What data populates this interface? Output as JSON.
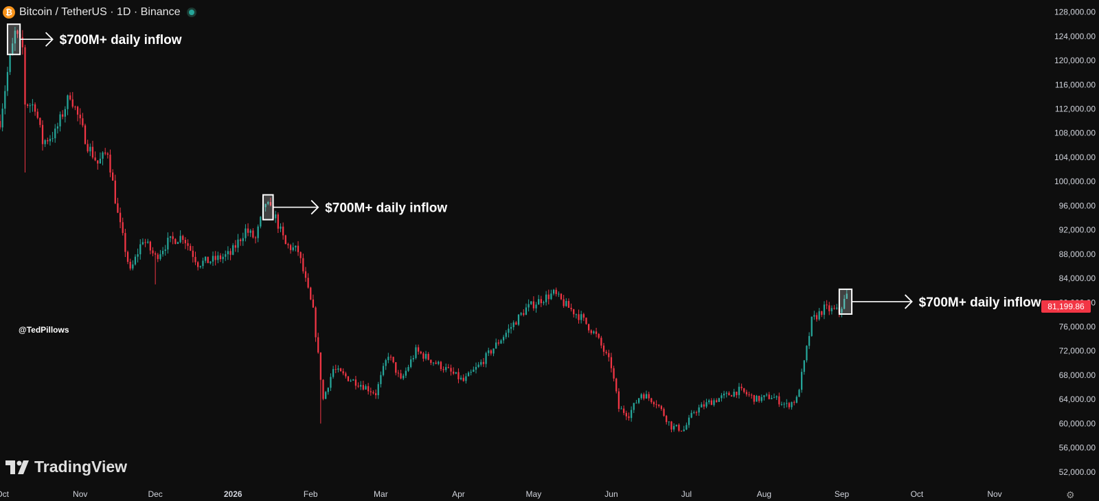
{
  "header": {
    "coin_icon": "bitcoin-icon",
    "coin_glyph": "₿",
    "title": "Bitcoin / TetherUS · 1D · Binance",
    "status_icon": "market-open-dot-icon"
  },
  "watermark": "@TedPillows",
  "brand": {
    "name": "TradingView",
    "icon": "tradingview-logo-icon"
  },
  "last_price": "81,199.86",
  "colors": {
    "background": "#0e0e0e",
    "up": "#26a69a",
    "down": "#f23645",
    "text": "#d1d4dc",
    "annotation": "#ffffff"
  },
  "chart_data": {
    "type": "candlestick",
    "title": "Bitcoin / TetherUS · 1D · Binance",
    "x_ticks": [
      {
        "label": "Oct",
        "date": "2025-10-01"
      },
      {
        "label": "Nov",
        "date": "2025-11-01"
      },
      {
        "label": "Dec",
        "date": "2025-12-01"
      },
      {
        "label": "2026",
        "date": "2026-01-01",
        "bold": true
      },
      {
        "label": "Feb",
        "date": "2026-02-01"
      },
      {
        "label": "Mar",
        "date": "2026-03-01"
      },
      {
        "label": "Apr",
        "date": "2026-04-01"
      },
      {
        "label": "May",
        "date": "2026-05-01"
      },
      {
        "label": "Jun",
        "date": "2026-06-01"
      },
      {
        "label": "Jul",
        "date": "2026-07-01"
      },
      {
        "label": "Aug",
        "date": "2026-08-01"
      },
      {
        "label": "Sep",
        "date": "2026-09-01"
      },
      {
        "label": "Oct",
        "date": "2026-10-01"
      },
      {
        "label": "Nov",
        "date": "2026-11-01"
      }
    ],
    "y_ticks": [
      "128,000.00",
      "124,000.00",
      "120,000.00",
      "116,000.00",
      "112,000.00",
      "108,000.00",
      "104,000.00",
      "100,000.00",
      "96,000.00",
      "92,000.00",
      "88,000.00",
      "84,000.00",
      "80,000.00",
      "76,000.00",
      "72,000.00",
      "68,000.00",
      "64,000.00",
      "60,000.00",
      "56,000.00",
      "52,000.00"
    ],
    "ylim": [
      50500,
      130000
    ],
    "xlim": [
      "2025-09-30",
      "2026-11-18"
    ],
    "grid": false,
    "price_path": [
      {
        "date": "2025-09-30",
        "price": 110000
      },
      {
        "date": "2025-10-03",
        "price": 118000
      },
      {
        "date": "2025-10-06",
        "price": 124500
      },
      {
        "date": "2025-10-09",
        "price": 122000
      },
      {
        "date": "2025-10-10",
        "price": 113000
      },
      {
        "date": "2025-10-14",
        "price": 112500
      },
      {
        "date": "2025-10-17",
        "price": 106500
      },
      {
        "date": "2025-10-22",
        "price": 108000
      },
      {
        "date": "2025-10-28",
        "price": 114500
      },
      {
        "date": "2025-11-04",
        "price": 106000
      },
      {
        "date": "2025-11-08",
        "price": 103000
      },
      {
        "date": "2025-11-12",
        "price": 105000
      },
      {
        "date": "2025-11-16",
        "price": 94500
      },
      {
        "date": "2025-11-21",
        "price": 85000
      },
      {
        "date": "2025-11-26",
        "price": 90500
      },
      {
        "date": "2025-12-01",
        "price": 87500
      },
      {
        "date": "2025-12-06",
        "price": 90000
      },
      {
        "date": "2025-12-12",
        "price": 91000
      },
      {
        "date": "2025-12-18",
        "price": 86500
      },
      {
        "date": "2025-12-24",
        "price": 87000
      },
      {
        "date": "2025-12-31",
        "price": 88000
      },
      {
        "date": "2026-01-06",
        "price": 92000
      },
      {
        "date": "2026-01-10",
        "price": 90500
      },
      {
        "date": "2026-01-14",
        "price": 96500
      },
      {
        "date": "2026-01-18",
        "price": 94000
      },
      {
        "date": "2026-01-22",
        "price": 89500
      },
      {
        "date": "2026-01-27",
        "price": 88500
      },
      {
        "date": "2026-02-02",
        "price": 78500
      },
      {
        "date": "2026-02-06",
        "price": 64000
      },
      {
        "date": "2026-02-10",
        "price": 69000
      },
      {
        "date": "2026-02-16",
        "price": 67500
      },
      {
        "date": "2026-02-21",
        "price": 66500
      },
      {
        "date": "2026-02-27",
        "price": 65000
      },
      {
        "date": "2026-03-04",
        "price": 71500
      },
      {
        "date": "2026-03-09",
        "price": 67000
      },
      {
        "date": "2026-03-15",
        "price": 72000
      },
      {
        "date": "2026-03-21",
        "price": 70500
      },
      {
        "date": "2026-03-27",
        "price": 69000
      },
      {
        "date": "2026-04-03",
        "price": 67000
      },
      {
        "date": "2026-04-09",
        "price": 69500
      },
      {
        "date": "2026-04-15",
        "price": 72500
      },
      {
        "date": "2026-04-21",
        "price": 75500
      },
      {
        "date": "2026-04-28",
        "price": 79000
      },
      {
        "date": "2026-05-04",
        "price": 80500
      },
      {
        "date": "2026-05-09",
        "price": 81500
      },
      {
        "date": "2026-05-14",
        "price": 79500
      },
      {
        "date": "2026-05-20",
        "price": 77500
      },
      {
        "date": "2026-05-26",
        "price": 74500
      },
      {
        "date": "2026-06-01",
        "price": 69500
      },
      {
        "date": "2026-06-04",
        "price": 62500
      },
      {
        "date": "2026-06-08",
        "price": 61500
      },
      {
        "date": "2026-06-13",
        "price": 65000
      },
      {
        "date": "2026-06-19",
        "price": 63500
      },
      {
        "date": "2026-06-25",
        "price": 59500
      },
      {
        "date": "2026-06-30",
        "price": 59000
      },
      {
        "date": "2026-07-04",
        "price": 62000
      },
      {
        "date": "2026-07-10",
        "price": 63500
      },
      {
        "date": "2026-07-16",
        "price": 64500
      },
      {
        "date": "2026-07-22",
        "price": 65500
      },
      {
        "date": "2026-07-29",
        "price": 64000
      },
      {
        "date": "2026-08-04",
        "price": 64500
      },
      {
        "date": "2026-08-10",
        "price": 63000
      },
      {
        "date": "2026-08-14",
        "price": 64000
      },
      {
        "date": "2026-08-17",
        "price": 70000
      },
      {
        "date": "2026-08-20",
        "price": 77000
      },
      {
        "date": "2026-08-25",
        "price": 79000
      },
      {
        "date": "2026-08-31",
        "price": 78500
      },
      {
        "date": "2026-09-03",
        "price": 81200
      }
    ],
    "annotations": [
      {
        "text": "$700M+ daily inflow",
        "box_start": "2025-10-03",
        "box_end": "2025-10-08",
        "box_low": 121000,
        "box_high": 126000,
        "arrow_end": "2025-10-21"
      },
      {
        "text": "$700M+ daily inflow",
        "box_start": "2026-01-13",
        "box_end": "2026-01-17",
        "box_low": 93700,
        "box_high": 97800,
        "arrow_end": "2026-02-04"
      },
      {
        "text": "$700M+ daily inflow",
        "box_start": "2026-08-31",
        "box_end": "2026-09-05",
        "box_low": 78100,
        "box_high": 82200,
        "arrow_end": "2026-09-29"
      }
    ],
    "last_price": 81199.86
  }
}
